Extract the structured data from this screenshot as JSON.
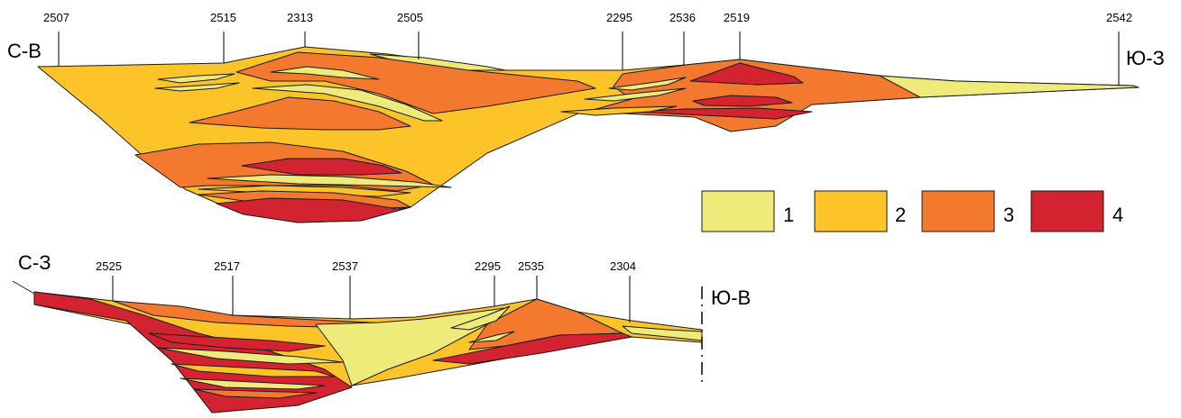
{
  "colors": {
    "facies_1": "#eeeb7a",
    "facies_2": "#fdc42a",
    "facies_3": "#f2792d",
    "facies_4": "#d42330",
    "outline": "#1a1a1a"
  },
  "section_top": {
    "left_direction": "С-В",
    "right_direction": "Ю-З",
    "wells": [
      "2507",
      "2515",
      "2313",
      "2505",
      "2295",
      "2536",
      "2519",
      "2542"
    ]
  },
  "section_bottom": {
    "left_direction": "С-З",
    "right_direction": "Ю-В",
    "wells": [
      "2525",
      "2517",
      "2537",
      "2295",
      "2535",
      "2304"
    ]
  },
  "legend": [
    {
      "label": "1",
      "color": "#eeeb7a"
    },
    {
      "label": "2",
      "color": "#fdc42a"
    },
    {
      "label": "3",
      "color": "#f2792d"
    },
    {
      "label": "4",
      "color": "#d42330"
    }
  ]
}
